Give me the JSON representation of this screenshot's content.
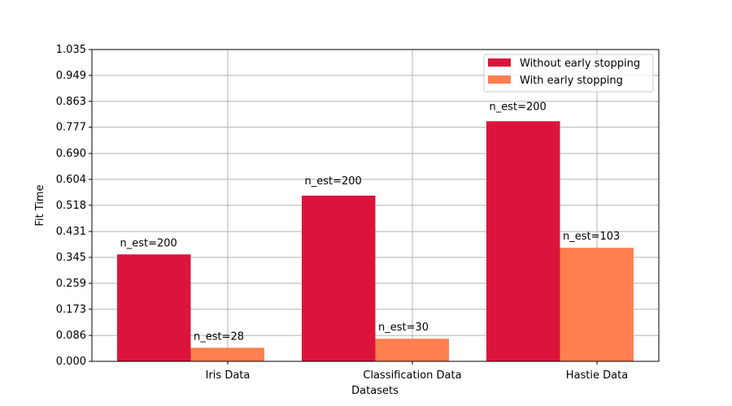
{
  "chart_data": {
    "type": "bar",
    "categories": [
      "Iris Data",
      "Classification Data",
      "Hastie Data"
    ],
    "series": [
      {
        "name": "Without early stopping",
        "color": "#dc143c",
        "values": [
          0.355,
          0.55,
          0.797
        ],
        "bar_labels": [
          "n_est=200",
          "n_est=200",
          "n_est=200"
        ]
      },
      {
        "name": "With early stopping",
        "color": "#ff7f50",
        "values": [
          0.045,
          0.075,
          0.377
        ],
        "bar_labels": [
          "n_est=28",
          "n_est=30",
          "n_est=103"
        ]
      }
    ],
    "xlabel": "Datasets",
    "ylabel": "Fit Time",
    "ylim": [
      0,
      1.035
    ],
    "yticks": [
      "0.000",
      "0.086",
      "0.173",
      "0.259",
      "0.345",
      "0.431",
      "0.518",
      "0.604",
      "0.690",
      "0.777",
      "0.863",
      "0.949",
      "1.035"
    ],
    "grid": true,
    "legend_position": "top-right"
  }
}
